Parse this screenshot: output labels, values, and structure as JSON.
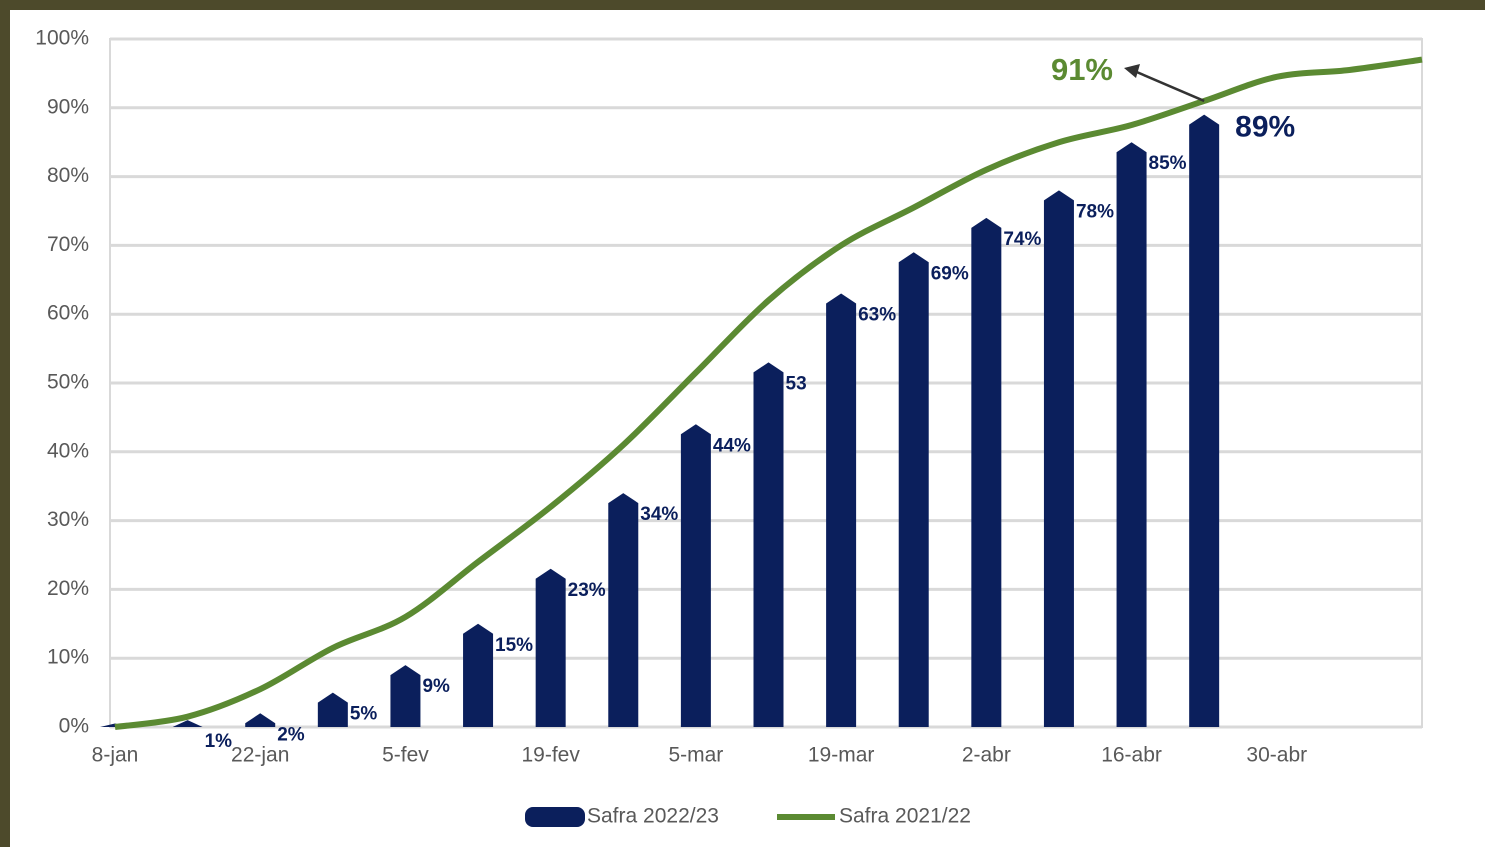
{
  "chart_data": {
    "type": "bar-line",
    "categories": [
      "8-jan",
      null,
      "22-jan",
      null,
      "5-fev",
      null,
      "19-fev",
      null,
      "5-mar",
      null,
      "19-mar",
      null,
      "2-abr",
      null,
      "16-abr",
      null,
      "30-abr",
      null,
      null
    ],
    "series": [
      {
        "name": "Safra 2022/23",
        "type": "bar",
        "color": "#0b1f5c",
        "values": [
          0.5,
          1,
          2,
          5,
          9,
          15,
          23,
          34,
          44,
          53,
          63,
          69,
          74,
          78,
          85,
          89,
          null,
          null,
          null
        ],
        "value_labels": [
          null,
          "1%",
          "2%",
          "5%",
          "9%",
          "15%",
          "23%",
          "34%",
          "44%",
          "53",
          "63%",
          "69%",
          "74%",
          "78%",
          "85%",
          "89%",
          null,
          null,
          null
        ]
      },
      {
        "name": "Safra 2021/22",
        "type": "line",
        "color": "#5b8a32",
        "values": [
          0,
          1.5,
          5.5,
          11.5,
          16,
          24,
          32,
          41,
          51.5,
          62,
          70,
          75.5,
          81,
          85,
          87.5,
          91,
          94.5,
          95.5,
          97
        ]
      }
    ],
    "annotations": [
      {
        "text": "91%",
        "color": "#5b8a32"
      }
    ],
    "ylim": [
      0,
      100
    ],
    "yticks": [
      {
        "value": 0,
        "label": "0%"
      },
      {
        "value": 10,
        "label": "10%"
      },
      {
        "value": 20,
        "label": "20%"
      },
      {
        "value": 30,
        "label": "30%"
      },
      {
        "value": 40,
        "label": "40%"
      },
      {
        "value": 50,
        "label": "50%"
      },
      {
        "value": 60,
        "label": "60%"
      },
      {
        "value": 70,
        "label": "70%"
      },
      {
        "value": 80,
        "label": "80%"
      },
      {
        "value": 90,
        "label": "90%"
      },
      {
        "value": 100,
        "label": "100%"
      }
    ],
    "grid": true,
    "legend": "bottom"
  }
}
